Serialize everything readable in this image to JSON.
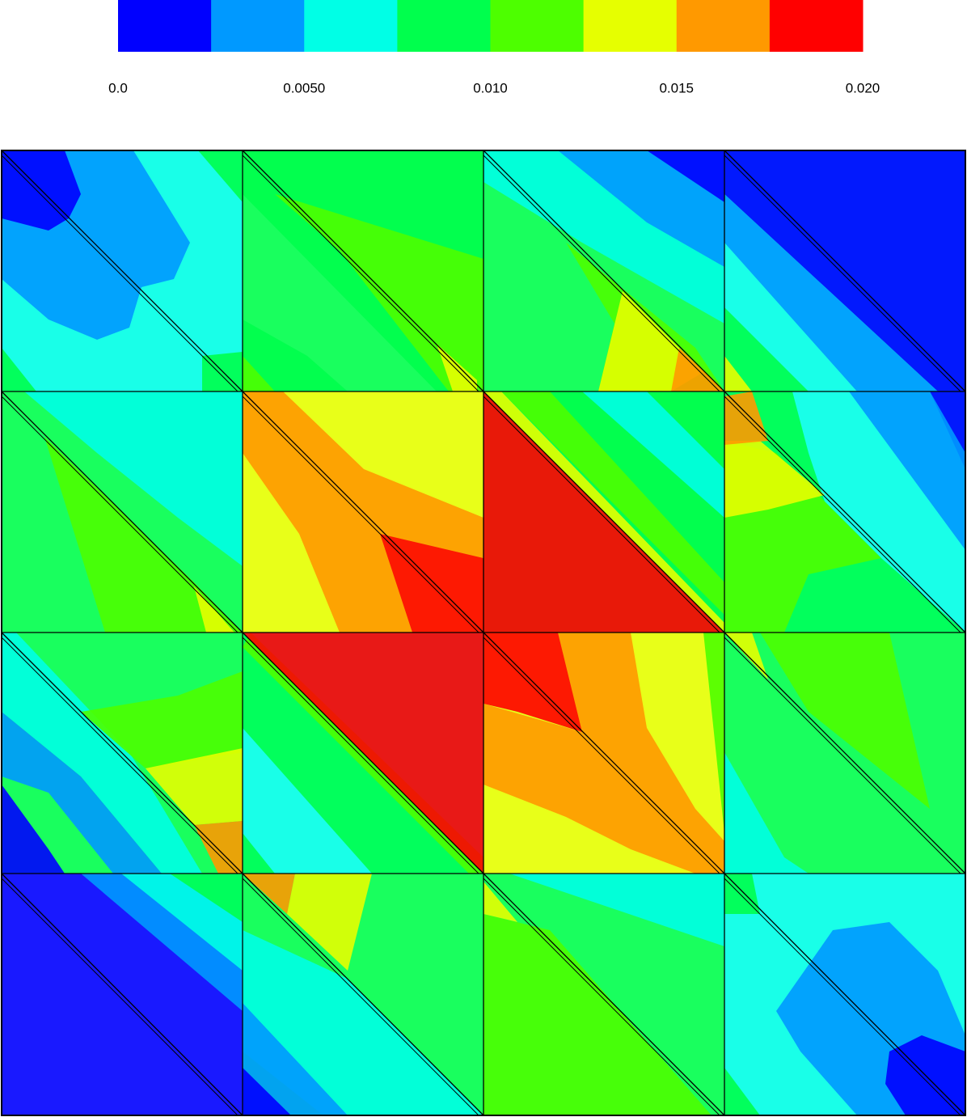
{
  "chart_data": {
    "type": "contour",
    "colorbar": {
      "colors": [
        "#0000ff",
        "#0099ff",
        "#00ffe6",
        "#00ff4d",
        "#4dff00",
        "#e6ff00",
        "#ff9900",
        "#ff0000"
      ],
      "clim": [
        0,
        0.02
      ],
      "ticks": [
        {
          "value": 0,
          "label": "0.0"
        },
        {
          "value": 0.005,
          "label": "0.0050"
        },
        {
          "value": 0.01,
          "label": "0.010"
        },
        0.015,
        {
          "value": 0.02,
          "label": "0.020"
        }
      ]
    }
  }
}
